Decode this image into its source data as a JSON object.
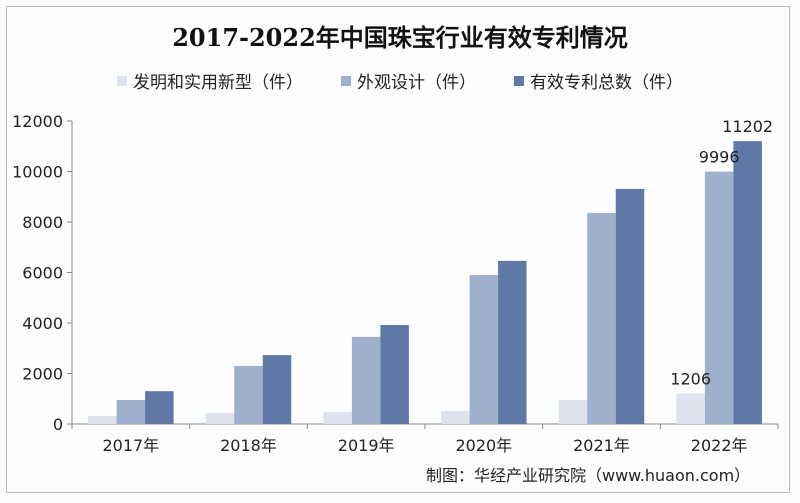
{
  "chart_data": {
    "type": "bar",
    "title": "2017-2022年中国珠宝行业有效专利情况",
    "categories": [
      "2017年",
      "2018年",
      "2019年",
      "2020年",
      "2021年",
      "2022年"
    ],
    "series": [
      {
        "name": "发明和实用新型（件）",
        "color": "#dde2ee",
        "values": [
          320,
          440,
          480,
          520,
          950,
          1206
        ]
      },
      {
        "name": "外观设计（件）",
        "color": "#9fb0cc",
        "values": [
          950,
          2300,
          3450,
          5900,
          8360,
          9996
        ]
      },
      {
        "name": "有效专利总数（件）",
        "color": "#5f78a6",
        "values": [
          1300,
          2730,
          3920,
          6460,
          9310,
          11202
        ]
      }
    ],
    "data_labels": [
      {
        "series": 0,
        "index": 5,
        "text": "1206"
      },
      {
        "series": 1,
        "index": 5,
        "text": "9996"
      },
      {
        "series": 2,
        "index": 5,
        "text": "11202"
      }
    ],
    "ylim": [
      0,
      12000
    ],
    "yticks": [
      "0",
      "2000",
      "4000",
      "6000",
      "8000",
      "10000",
      "12000"
    ],
    "grid": false,
    "legend": "top",
    "xlabel": "",
    "ylabel": ""
  },
  "source": "制图：华经产业研究院（www.huaon.com）"
}
